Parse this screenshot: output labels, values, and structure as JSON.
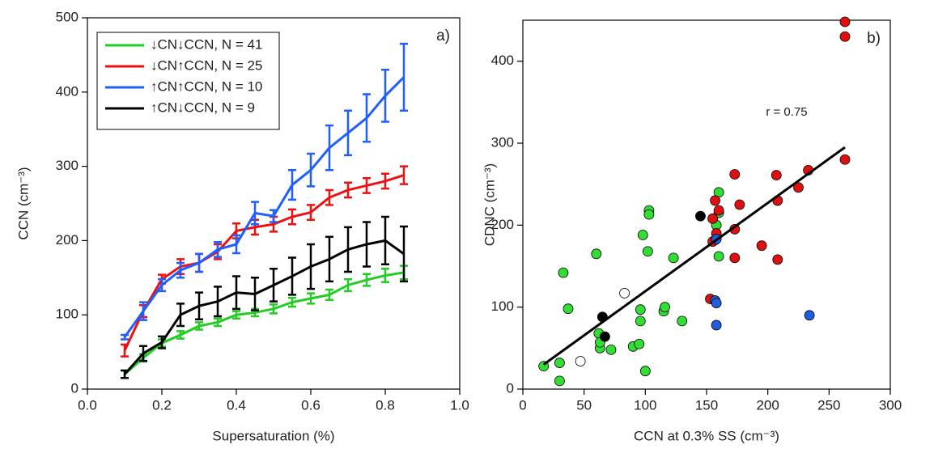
{
  "chart_data": [
    {
      "type": "line",
      "xlabel": "Supersaturation (%)",
      "ylabel": "CCN (cm⁻³)",
      "annotation": "a)",
      "xlim": [
        0,
        1
      ],
      "xticks": [
        {
          "value": 0,
          "label": "0.0"
        },
        0.2,
        0.4,
        0.6,
        0.8,
        {
          "value": 1,
          "label": "1.0"
        }
      ],
      "ylim": [
        0,
        500
      ],
      "yticks": [
        0,
        100,
        200,
        300,
        400,
        500
      ],
      "legend": "upper left",
      "x": [
        0.1,
        0.15,
        0.2,
        0.25,
        0.3,
        0.35,
        0.4,
        0.45,
        0.5,
        0.55,
        0.6,
        0.65,
        0.7,
        0.75,
        0.8,
        0.85
      ],
      "series": [
        {
          "name": "↓CN↓CCN, N = 41",
          "color": "#22cc22",
          "values": [
            20,
            42,
            62,
            73,
            85,
            90,
            100,
            103,
            108,
            117,
            122,
            127,
            140,
            147,
            153,
            157
          ],
          "errors": [
            5,
            5,
            5,
            5,
            5,
            5,
            5,
            5,
            6,
            6,
            7,
            7,
            8,
            8,
            9,
            9
          ]
        },
        {
          "name": "↓CN↑CCN, N = 25",
          "color": "#ee1111",
          "values": [
            52,
            105,
            148,
            165,
            170,
            185,
            213,
            218,
            222,
            232,
            238,
            258,
            268,
            274,
            280,
            288
          ],
          "errors": [
            8,
            8,
            6,
            10,
            12,
            10,
            10,
            10,
            10,
            10,
            10,
            10,
            10,
            10,
            10,
            12
          ]
        },
        {
          "name": "↑CN↑CCN, N = 10",
          "color": "#1f5fff",
          "values": [
            70,
            105,
            140,
            160,
            170,
            188,
            195,
            237,
            233,
            275,
            295,
            325,
            345,
            365,
            395,
            420
          ],
          "errors": [
            3,
            12,
            8,
            10,
            12,
            10,
            12,
            15,
            8,
            20,
            22,
            30,
            30,
            32,
            35,
            45
          ]
        },
        {
          "name": "↑CN↓CCN, N = 9",
          "color": "#000000",
          "values": [
            20,
            48,
            63,
            100,
            112,
            118,
            130,
            128,
            140,
            152,
            165,
            175,
            188,
            195,
            200,
            182
          ],
          "errors": [
            5,
            10,
            8,
            15,
            18,
            20,
            22,
            22,
            22,
            25,
            30,
            30,
            30,
            30,
            32,
            37
          ]
        }
      ]
    },
    {
      "type": "scatter",
      "xlabel": "CCN at 0.3% SS (cm⁻³)",
      "ylabel": "CDNC (cm⁻³)",
      "annotation": "b)",
      "r_label": "r = 0.75",
      "xlim": [
        0,
        300
      ],
      "xticks": [
        0,
        50,
        100,
        150,
        200,
        250,
        300
      ],
      "ylim": [
        0,
        450
      ],
      "yticks": [
        0,
        100,
        200,
        300,
        400
      ],
      "series": [
        {
          "color": "#33dd33",
          "x": [
            17,
            30,
            30,
            33,
            37,
            60,
            62,
            63,
            63,
            72,
            90,
            95,
            96,
            96,
            98,
            100,
            102,
            103,
            103,
            115,
            116,
            123,
            130,
            158,
            160,
            160,
            160,
            157
          ],
          "y": [
            28,
            10,
            32,
            142,
            98,
            165,
            68,
            50,
            57,
            48,
            52,
            55,
            83,
            97,
            188,
            22,
            168,
            218,
            213,
            95,
            100,
            160,
            83,
            200,
            240,
            215,
            162,
            182
          ]
        },
        {
          "color": "#e01010",
          "x": [
            153,
            155,
            155,
            157,
            158,
            160,
            173,
            173,
            173,
            177,
            195,
            207,
            208,
            208,
            225,
            233,
            263,
            263,
            263
          ],
          "y": [
            110,
            180,
            208,
            230,
            190,
            218,
            195,
            160,
            262,
            225,
            175,
            261,
            230,
            158,
            246,
            267,
            280,
            448,
            430
          ]
        },
        {
          "color": "#1f5fdd",
          "x": [
            157,
            158,
            158,
            158,
            234
          ],
          "y": [
            108,
            105,
            78,
            183,
            90
          ]
        },
        {
          "color": "#000000",
          "x": [
            65,
            67,
            145
          ],
          "y": [
            88,
            64,
            211
          ]
        },
        {
          "color": "#ffffff",
          "x": [
            47,
            83
          ],
          "y": [
            34,
            117
          ]
        }
      ],
      "trend": {
        "color": "#000000",
        "x": [
          17,
          263
        ],
        "y": [
          30,
          295
        ]
      }
    }
  ]
}
